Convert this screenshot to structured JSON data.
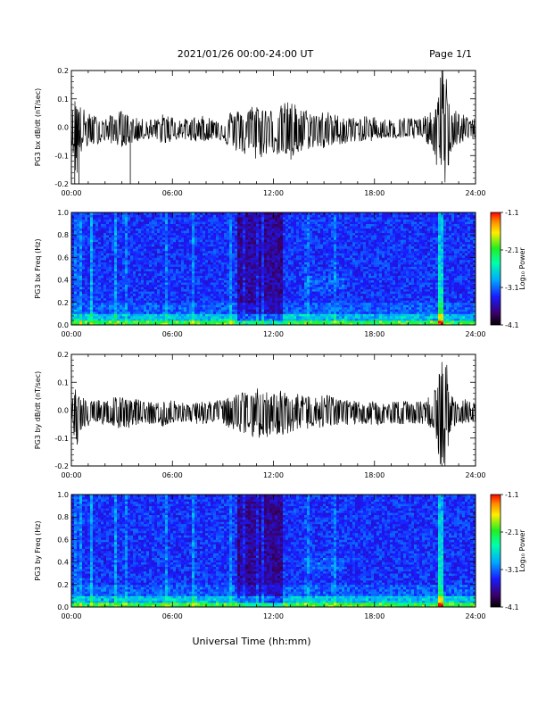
{
  "header": {
    "title": "2021/01/26  00:00-24:00 UT",
    "page": "Page 1/1"
  },
  "xlabel": "Universal Time (hh:mm)",
  "chart_data": [
    {
      "type": "line",
      "ylabel": "PG3 bx dB/dt (nT/sec)",
      "xticks": [
        "00:00",
        "06:00",
        "12:00",
        "18:00",
        "24:00"
      ],
      "xlim_hours": [
        0,
        24
      ],
      "ylim": [
        -0.2,
        0.2
      ],
      "yticks": [
        "-0.2",
        "-0.1",
        "0.0",
        "0.1",
        "0.2"
      ],
      "envelope": {
        "hours": [
          0,
          0.3,
          0.5,
          1,
          1.5,
          2,
          2.5,
          3,
          3.5,
          4,
          4.5,
          5,
          5.5,
          6,
          6.5,
          7,
          7.5,
          8,
          8.5,
          9,
          9.5,
          10,
          10.5,
          11,
          11.5,
          12,
          12.5,
          13,
          13.5,
          14,
          14.5,
          15,
          15.5,
          16,
          16.5,
          17,
          17.5,
          18,
          18.5,
          19,
          19.5,
          20,
          20.5,
          21,
          21.5,
          21.8,
          22,
          22.2,
          22.5,
          23,
          23.5,
          24
        ],
        "upper": [
          0.04,
          0.14,
          0.08,
          0.05,
          0.04,
          0.03,
          0.05,
          0.06,
          0.04,
          0.03,
          0.03,
          0.03,
          0.05,
          0.04,
          0.03,
          0.03,
          0.04,
          0.04,
          0.03,
          0.04,
          0.06,
          0.06,
          0.07,
          0.09,
          0.07,
          0.06,
          0.08,
          0.1,
          0.07,
          0.06,
          0.05,
          0.06,
          0.05,
          0.04,
          0.04,
          0.03,
          0.04,
          0.04,
          0.03,
          0.03,
          0.03,
          0.04,
          0.03,
          0.04,
          0.06,
          0.12,
          0.22,
          0.22,
          0.08,
          0.05,
          0.04,
          0.03
        ],
        "lower": [
          -0.05,
          -0.2,
          -0.1,
          -0.07,
          -0.06,
          -0.05,
          -0.06,
          -0.07,
          -0.06,
          -0.05,
          -0.04,
          -0.05,
          -0.06,
          -0.05,
          -0.04,
          -0.05,
          -0.05,
          -0.05,
          -0.04,
          -0.05,
          -0.08,
          -0.09,
          -0.11,
          -0.12,
          -0.1,
          -0.09,
          -0.11,
          -0.13,
          -0.1,
          -0.08,
          -0.07,
          -0.08,
          -0.07,
          -0.06,
          -0.06,
          -0.05,
          -0.05,
          -0.05,
          -0.04,
          -0.04,
          -0.04,
          -0.05,
          -0.04,
          -0.05,
          -0.08,
          -0.18,
          -0.22,
          -0.22,
          -0.1,
          -0.06,
          -0.05,
          -0.04
        ]
      },
      "spikes": [
        {
          "hour": 0.2,
          "value": -0.2
        },
        {
          "hour": 0.45,
          "value": -0.2
        },
        {
          "hour": 3.5,
          "value": -0.2
        }
      ]
    },
    {
      "type": "heatmap",
      "ylabel": "PG3 bx Freq (Hz)",
      "xticks": [
        "00:00",
        "06:00",
        "12:00",
        "18:00",
        "24:00"
      ],
      "xlim_hours": [
        0,
        24
      ],
      "ylim": [
        0,
        1.0
      ],
      "yticks": [
        "0.0",
        "0.2",
        "0.4",
        "0.6",
        "0.8",
        "1.0"
      ],
      "colorbar": {
        "label": "Log₁₀ Power",
        "ticks": [
          "-1.1",
          "-2.1",
          "-3.1",
          "-4.1"
        ],
        "range": [
          -4.1,
          -1.1
        ]
      },
      "bright_columns_hours": [
        0.3,
        0.6,
        1.2,
        2.6,
        3.2,
        5.6,
        7.2,
        9.5,
        10.2,
        11.0,
        11.4,
        14.0,
        15.6,
        21.85,
        22.0
      ],
      "quiet_band_hours": [
        9.8,
        12.5
      ],
      "arc_feature": {
        "hours": [
          13.8,
          16.2
        ],
        "freq_hz": [
          0.3,
          0.45
        ]
      }
    },
    {
      "type": "line",
      "ylabel": "PG3 by dB/dt (nT/sec)",
      "xticks": [
        "00:00",
        "06:00",
        "12:00",
        "18:00",
        "24:00"
      ],
      "xlim_hours": [
        0,
        24
      ],
      "ylim": [
        -0.2,
        0.2
      ],
      "yticks": [
        "-0.2",
        "-0.1",
        "0.0",
        "0.1",
        "0.2"
      ],
      "envelope": {
        "hours": [
          0,
          0.3,
          0.5,
          1,
          1.5,
          2,
          2.5,
          3,
          3.5,
          4,
          4.5,
          5,
          5.5,
          6,
          6.5,
          7,
          7.5,
          8,
          8.5,
          9,
          9.5,
          10,
          10.5,
          11,
          11.5,
          12,
          12.5,
          13,
          13.5,
          14,
          14.5,
          15,
          15.5,
          16,
          16.5,
          17,
          17.5,
          18,
          18.5,
          19,
          19.5,
          20,
          20.5,
          21,
          21.5,
          21.8,
          22,
          22.2,
          22.5,
          23,
          23.5,
          24
        ],
        "upper": [
          0.03,
          0.09,
          0.05,
          0.04,
          0.04,
          0.03,
          0.05,
          0.06,
          0.04,
          0.04,
          0.03,
          0.03,
          0.04,
          0.04,
          0.03,
          0.03,
          0.03,
          0.04,
          0.03,
          0.04,
          0.05,
          0.06,
          0.07,
          0.08,
          0.07,
          0.07,
          0.07,
          0.06,
          0.06,
          0.05,
          0.05,
          0.06,
          0.05,
          0.04,
          0.04,
          0.03,
          0.04,
          0.03,
          0.03,
          0.03,
          0.04,
          0.03,
          0.03,
          0.04,
          0.06,
          0.14,
          0.22,
          0.22,
          0.06,
          0.04,
          0.04,
          0.03
        ],
        "lower": [
          -0.05,
          -0.18,
          -0.08,
          -0.06,
          -0.05,
          -0.05,
          -0.06,
          -0.08,
          -0.06,
          -0.05,
          -0.05,
          -0.05,
          -0.06,
          -0.05,
          -0.04,
          -0.05,
          -0.05,
          -0.05,
          -0.04,
          -0.05,
          -0.07,
          -0.08,
          -0.09,
          -0.1,
          -0.1,
          -0.09,
          -0.09,
          -0.08,
          -0.08,
          -0.07,
          -0.06,
          -0.07,
          -0.06,
          -0.06,
          -0.06,
          -0.05,
          -0.05,
          -0.06,
          -0.05,
          -0.05,
          -0.05,
          -0.05,
          -0.05,
          -0.05,
          -0.08,
          -0.16,
          -0.22,
          -0.22,
          -0.08,
          -0.05,
          -0.05,
          -0.04
        ]
      }
    },
    {
      "type": "heatmap",
      "ylabel": "PG3 by Freq (Hz)",
      "xticks": [
        "00:00",
        "06:00",
        "12:00",
        "18:00",
        "24:00"
      ],
      "xlim_hours": [
        0,
        24
      ],
      "ylim": [
        0,
        1.0
      ],
      "yticks": [
        "0.0",
        "0.2",
        "0.4",
        "0.6",
        "0.8",
        "1.0"
      ],
      "colorbar": {
        "label": "Log₁₀ Power",
        "ticks": [
          "-1.1",
          "-2.1",
          "-3.1",
          "-4.1"
        ],
        "range": [
          -4.1,
          -1.1
        ]
      },
      "bright_columns_hours": [
        0.3,
        0.6,
        1.2,
        2.6,
        3.2,
        5.6,
        7.2,
        9.5,
        10.2,
        11.0,
        11.4,
        14.0,
        15.6,
        21.85,
        22.0
      ],
      "quiet_band_hours": [
        9.8,
        12.5
      ],
      "arc_feature": {
        "hours": [
          13.8,
          16.2
        ],
        "freq_hz": [
          0.3,
          0.45
        ]
      }
    }
  ]
}
